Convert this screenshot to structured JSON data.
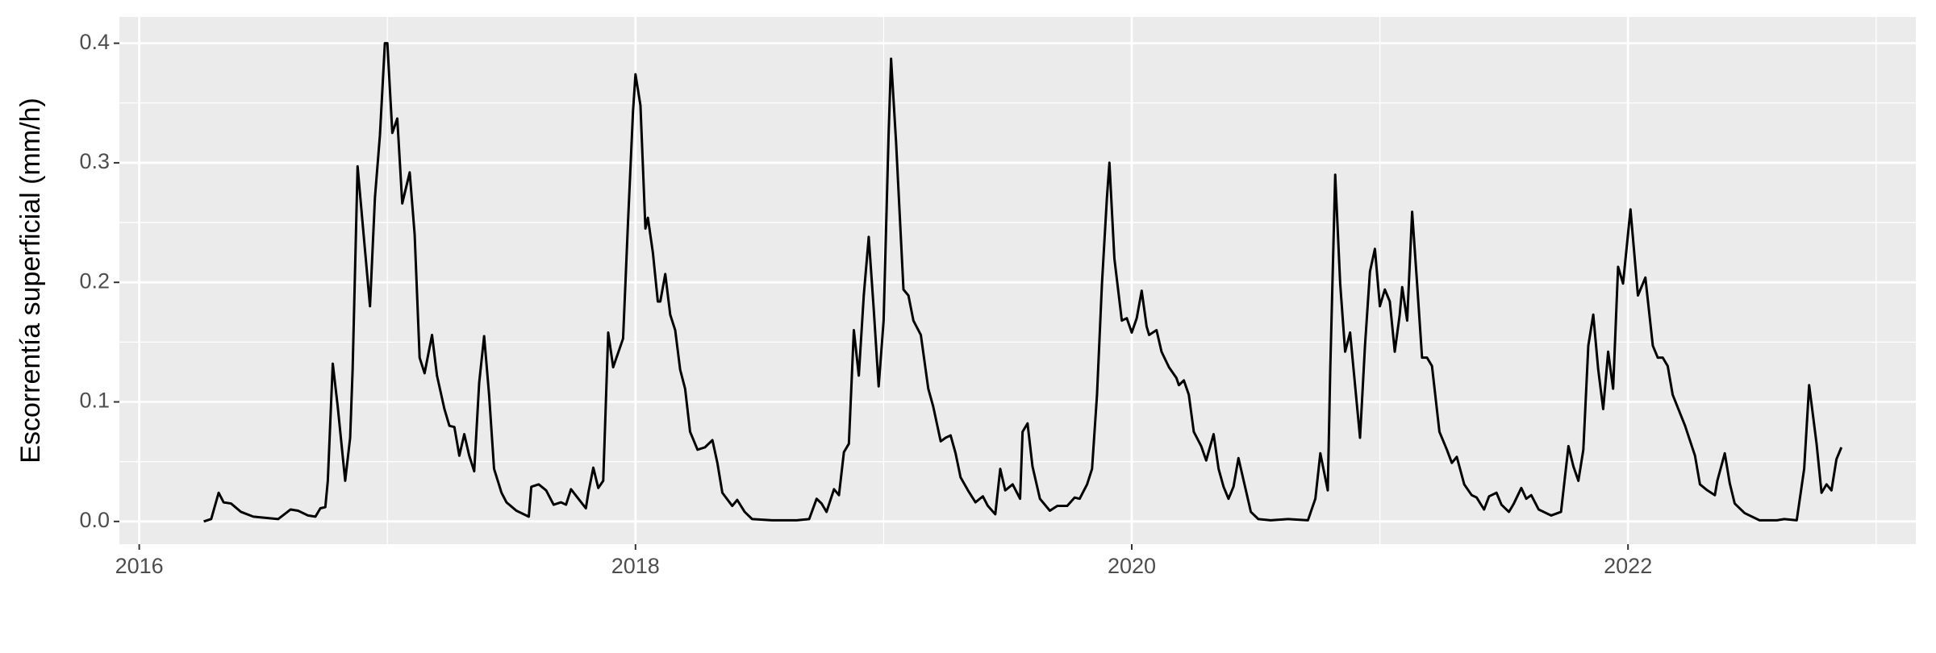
{
  "chart_data": {
    "type": "line",
    "y_label": "Escorrentía superficial (mm/h)",
    "xlim": [
      2015.92,
      2023.16
    ],
    "xticks": [
      2016,
      2018,
      2020,
      2022
    ],
    "ylim": [
      -0.019,
      0.422
    ],
    "yticks": [
      {
        "value": 0,
        "label": "0.0"
      },
      0.1,
      0.2,
      0.3,
      0.4
    ],
    "grid": true,
    "color": "#000000",
    "x": [
      2016.26,
      2016.29,
      2016.32,
      2016.34,
      2016.37,
      2016.41,
      2016.46,
      2016.56,
      2016.61,
      2016.64,
      2016.68,
      2016.71,
      2016.73,
      2016.75,
      2016.76,
      2016.78,
      2016.8,
      2016.83,
      2016.85,
      2016.86,
      2016.88,
      2016.9,
      2016.93,
      2016.95,
      2016.97,
      2016.99,
      2017.0,
      2017.02,
      2017.04,
      2017.06,
      2017.09,
      2017.11,
      2017.13,
      2017.15,
      2017.18,
      2017.2,
      2017.23,
      2017.25,
      2017.27,
      2017.29,
      2017.31,
      2017.33,
      2017.35,
      2017.37,
      2017.39,
      2017.41,
      2017.43,
      2017.46,
      2017.48,
      2017.52,
      2017.57,
      2017.58,
      2017.61,
      2017.64,
      2017.67,
      2017.7,
      2017.72,
      2017.74,
      2017.77,
      2017.8,
      2017.81,
      2017.83,
      2017.85,
      2017.87,
      2017.89,
      2017.91,
      2017.94,
      2017.95,
      2017.97,
      2017.99,
      2018.0,
      2018.02,
      2018.04,
      2018.05,
      2018.07,
      2018.09,
      2018.1,
      2018.12,
      2018.14,
      2018.16,
      2018.18,
      2018.2,
      2018.22,
      2018.25,
      2018.28,
      2018.31,
      2018.33,
      2018.35,
      2018.39,
      2018.41,
      2018.44,
      2018.47,
      2018.55,
      2018.65,
      2018.7,
      2018.73,
      2018.75,
      2018.77,
      2018.8,
      2018.82,
      2018.84,
      2018.86,
      2018.88,
      2018.9,
      2018.92,
      2018.94,
      2018.96,
      2018.98,
      2019.0,
      2019.02,
      2019.03,
      2019.05,
      2019.08,
      2019.1,
      2019.12,
      2019.15,
      2019.18,
      2019.2,
      2019.23,
      2019.25,
      2019.27,
      2019.29,
      2019.31,
      2019.34,
      2019.37,
      2019.4,
      2019.42,
      2019.45,
      2019.47,
      2019.49,
      2019.52,
      2019.55,
      2019.56,
      2019.58,
      2019.6,
      2019.63,
      2019.67,
      2019.7,
      2019.74,
      2019.77,
      2019.79,
      2019.82,
      2019.84,
      2019.86,
      2019.88,
      2019.9,
      2019.91,
      2019.93,
      2019.96,
      2019.98,
      2020.0,
      2020.02,
      2020.04,
      2020.06,
      2020.07,
      2020.1,
      2020.12,
      2020.15,
      2020.18,
      2020.19,
      2020.21,
      2020.23,
      2020.25,
      2020.28,
      2020.3,
      2020.33,
      2020.35,
      2020.37,
      2020.39,
      2020.41,
      2020.43,
      2020.46,
      2020.48,
      2020.51,
      2020.56,
      2020.63,
      2020.71,
      2020.74,
      2020.76,
      2020.79,
      2020.8,
      2020.82,
      2020.84,
      2020.86,
      2020.88,
      2020.92,
      2020.94,
      2020.96,
      2020.98,
      2021.0,
      2021.02,
      2021.04,
      2021.06,
      2021.08,
      2021.09,
      2021.11,
      2021.13,
      2021.15,
      2021.17,
      2021.19,
      2021.21,
      2021.24,
      2021.27,
      2021.29,
      2021.31,
      2021.34,
      2021.37,
      2021.39,
      2021.42,
      2021.44,
      2021.47,
      2021.49,
      2021.52,
      2021.54,
      2021.57,
      2021.59,
      2021.61,
      2021.64,
      2021.69,
      2021.73,
      2021.76,
      2021.78,
      2021.8,
      2021.82,
      2021.84,
      2021.86,
      2021.88,
      2021.9,
      2021.92,
      2021.94,
      2021.96,
      2021.98,
      2022.01,
      2022.04,
      2022.07,
      2022.1,
      2022.12,
      2022.14,
      2022.16,
      2022.18,
      2022.23,
      2022.27,
      2022.29,
      2022.32,
      2022.35,
      2022.36,
      2022.39,
      2022.41,
      2022.43,
      2022.47,
      2022.53,
      2022.6,
      2022.63,
      2022.68,
      2022.71,
      2022.73,
      2022.76,
      2022.78,
      2022.8,
      2022.82,
      2022.84,
      2022.86
    ],
    "values": [
      0.0,
      0.002,
      0.024,
      0.016,
      0.015,
      0.008,
      0.004,
      0.002,
      0.01,
      0.009,
      0.005,
      0.004,
      0.011,
      0.012,
      0.034,
      0.132,
      0.096,
      0.034,
      0.07,
      0.127,
      0.297,
      0.25,
      0.18,
      0.271,
      0.323,
      0.4,
      0.4,
      0.325,
      0.337,
      0.266,
      0.292,
      0.24,
      0.137,
      0.124,
      0.156,
      0.122,
      0.094,
      0.08,
      0.079,
      0.055,
      0.073,
      0.055,
      0.042,
      0.116,
      0.155,
      0.106,
      0.044,
      0.024,
      0.016,
      0.009,
      0.004,
      0.029,
      0.031,
      0.026,
      0.014,
      0.016,
      0.014,
      0.027,
      0.019,
      0.011,
      0.024,
      0.045,
      0.028,
      0.034,
      0.158,
      0.129,
      0.147,
      0.153,
      0.251,
      0.343,
      0.374,
      0.348,
      0.245,
      0.254,
      0.225,
      0.184,
      0.184,
      0.207,
      0.173,
      0.16,
      0.127,
      0.111,
      0.075,
      0.06,
      0.062,
      0.068,
      0.049,
      0.024,
      0.013,
      0.018,
      0.008,
      0.002,
      0.001,
      0.001,
      0.002,
      0.019,
      0.015,
      0.008,
      0.027,
      0.022,
      0.058,
      0.065,
      0.16,
      0.122,
      0.189,
      0.238,
      0.178,
      0.113,
      0.168,
      0.323,
      0.387,
      0.318,
      0.194,
      0.189,
      0.168,
      0.156,
      0.111,
      0.096,
      0.067,
      0.07,
      0.072,
      0.057,
      0.037,
      0.026,
      0.016,
      0.021,
      0.013,
      0.006,
      0.044,
      0.026,
      0.031,
      0.019,
      0.075,
      0.082,
      0.046,
      0.019,
      0.009,
      0.013,
      0.013,
      0.02,
      0.019,
      0.031,
      0.044,
      0.106,
      0.199,
      0.271,
      0.3,
      0.22,
      0.168,
      0.17,
      0.158,
      0.17,
      0.193,
      0.163,
      0.156,
      0.16,
      0.142,
      0.129,
      0.12,
      0.114,
      0.118,
      0.106,
      0.075,
      0.063,
      0.051,
      0.073,
      0.044,
      0.029,
      0.019,
      0.029,
      0.053,
      0.026,
      0.008,
      0.002,
      0.001,
      0.002,
      0.001,
      0.019,
      0.057,
      0.026,
      0.127,
      0.29,
      0.199,
      0.142,
      0.158,
      0.07,
      0.147,
      0.209,
      0.228,
      0.18,
      0.194,
      0.184,
      0.142,
      0.173,
      0.196,
      0.168,
      0.259,
      0.199,
      0.137,
      0.137,
      0.13,
      0.075,
      0.06,
      0.049,
      0.054,
      0.031,
      0.022,
      0.02,
      0.01,
      0.021,
      0.024,
      0.014,
      0.008,
      0.015,
      0.028,
      0.019,
      0.022,
      0.01,
      0.005,
      0.008,
      0.063,
      0.046,
      0.034,
      0.06,
      0.147,
      0.173,
      0.127,
      0.094,
      0.142,
      0.111,
      0.213,
      0.199,
      0.261,
      0.189,
      0.204,
      0.147,
      0.137,
      0.137,
      0.13,
      0.106,
      0.08,
      0.055,
      0.031,
      0.026,
      0.022,
      0.034,
      0.057,
      0.032,
      0.015,
      0.007,
      0.001,
      0.001,
      0.002,
      0.001,
      0.044,
      0.114,
      0.065,
      0.024,
      0.031,
      0.026,
      0.052,
      0.062
    ]
  }
}
